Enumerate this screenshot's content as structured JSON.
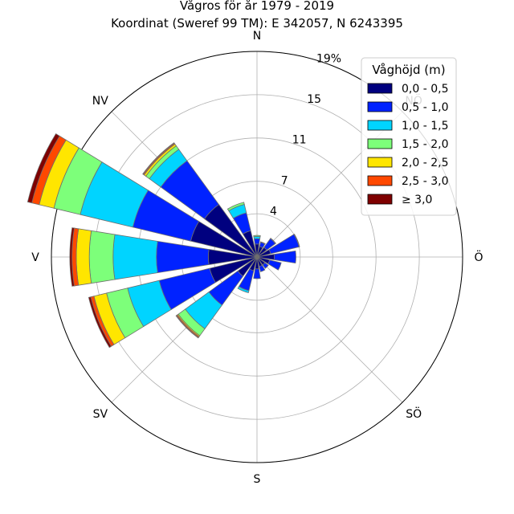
{
  "chart_data": {
    "type": "windrose",
    "title": "Vågros för år 1979 - 2019",
    "subtitle": "Koordinat (Sweref 99 TM): E 342057, N 6243395",
    "directions": [
      "N",
      "NNÖ",
      "NÖ",
      "ÖNÖ",
      "Ö",
      "ÖSÖ",
      "SÖ",
      "SSÖ",
      "S",
      "SSV",
      "SV",
      "VSV",
      "V",
      "VNV",
      "NV",
      "NNV"
    ],
    "direction_labels": [
      "N",
      "NÖ",
      "Ö",
      "SÖ",
      "S",
      "SV",
      "V",
      "NV"
    ],
    "ring_values": [
      4,
      7,
      11,
      15,
      19
    ],
    "ring_labels": [
      "4",
      "7",
      "11",
      "15",
      "19%"
    ],
    "rmax": 19,
    "legend": {
      "title": "Våghöjd (m)",
      "placement": "top-right",
      "items": [
        {
          "label": "0,0 - 0,5",
          "color": "#00007f"
        },
        {
          "label": "0,5 - 1,0",
          "color": "#0022ff"
        },
        {
          "label": "1,0 - 1,5",
          "color": "#00d4ff"
        },
        {
          "label": "1,5 - 2,0",
          "color": "#7dff7a"
        },
        {
          "label": "2,0 - 2,5",
          "color": "#ffe600"
        },
        {
          "label": "2,5 - 3,0",
          "color": "#ff4800"
        },
        {
          "label": "≥ 3,0",
          "color": "#7f0000"
        }
      ]
    },
    "series": [
      {
        "name": "0,0 - 0,5",
        "values": [
          1.2,
          1.0,
          1.1,
          1.3,
          1.6,
          1.2,
          0.9,
          0.9,
          1.1,
          1.3,
          2.2,
          4.5,
          4.5,
          6.3,
          6.0,
          2.5
        ]
      },
      {
        "name": "0,5 - 1,0",
        "values": [
          0.5,
          0.4,
          1.0,
          2.7,
          2.0,
          1.1,
          0.4,
          0.5,
          0.9,
          1.9,
          3.3,
          4.8,
          4.8,
          5.5,
          5.0,
          1.7
        ]
      },
      {
        "name": "1,0 - 1,5",
        "values": [
          0.2,
          0.05,
          0.05,
          0.05,
          0.0,
          0.0,
          0.0,
          0.0,
          0.0,
          0.2,
          2.7,
          3.0,
          4.0,
          5.0,
          1.3,
          0.8
        ]
      },
      {
        "name": "1,5 - 2,0",
        "values": [
          0.1,
          0.0,
          0.0,
          0.0,
          0.0,
          0.0,
          0.0,
          0.0,
          0.0,
          0.0,
          0.8,
          2.0,
          2.2,
          2.5,
          0.4,
          0.2
        ]
      },
      {
        "name": "2,0 - 2,5",
        "values": [
          0.0,
          0.0,
          0.0,
          0.0,
          0.0,
          0.0,
          0.0,
          0.0,
          0.0,
          0.0,
          0.1,
          1.2,
          1.2,
          1.4,
          0.2,
          0.0
        ]
      },
      {
        "name": "2,5 - 3,0",
        "values": [
          0.0,
          0.0,
          0.0,
          0.0,
          0.0,
          0.0,
          0.0,
          0.0,
          0.0,
          0.0,
          0.1,
          0.3,
          0.4,
          0.7,
          0.1,
          0.0
        ]
      },
      {
        "name": "≥ 3,0",
        "values": [
          0.0,
          0.0,
          0.0,
          0.0,
          0.0,
          0.0,
          0.0,
          0.0,
          0.0,
          0.0,
          0.05,
          0.2,
          0.2,
          0.4,
          0.05,
          0.0
        ]
      }
    ],
    "grid": true
  }
}
